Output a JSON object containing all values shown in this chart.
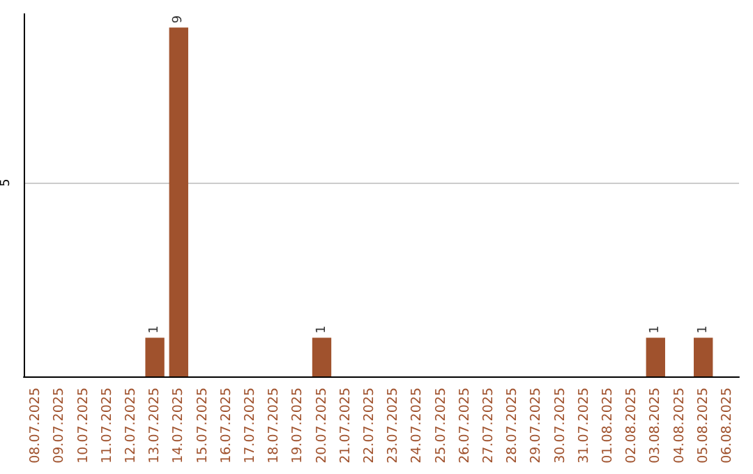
{
  "chart_data": {
    "type": "bar",
    "categories": [
      "08.07.2025",
      "09.07.2025",
      "10.07.2025",
      "11.07.2025",
      "12.07.2025",
      "13.07.2025",
      "14.07.2025",
      "15.07.2025",
      "16.07.2025",
      "17.07.2025",
      "18.07.2025",
      "19.07.2025",
      "20.07.2025",
      "21.07.2025",
      "22.07.2025",
      "23.07.2025",
      "24.07.2025",
      "25.07.2025",
      "26.07.2025",
      "27.07.2025",
      "28.07.2025",
      "29.07.2025",
      "30.07.2025",
      "31.07.2025",
      "01.08.2025",
      "02.08.2025",
      "03.08.2025",
      "04.08.2025",
      "05.08.2025",
      "06.08.2025"
    ],
    "values": [
      0,
      0,
      0,
      0,
      0,
      1,
      9,
      0,
      0,
      0,
      0,
      0,
      1,
      0,
      0,
      0,
      0,
      0,
      0,
      0,
      0,
      0,
      0,
      0,
      0,
      0,
      1,
      0,
      1,
      0
    ],
    "value_labels": [
      null,
      null,
      null,
      null,
      null,
      "1",
      "9",
      null,
      null,
      null,
      null,
      null,
      "1",
      null,
      null,
      null,
      null,
      null,
      null,
      null,
      null,
      null,
      null,
      null,
      null,
      null,
      "1",
      null,
      "1",
      null
    ],
    "color": "#a0522d",
    "ylim": [
      0,
      9.35
    ],
    "yticks": [
      {
        "value": 0,
        "label": null
      },
      5
    ],
    "grid": "y"
  }
}
